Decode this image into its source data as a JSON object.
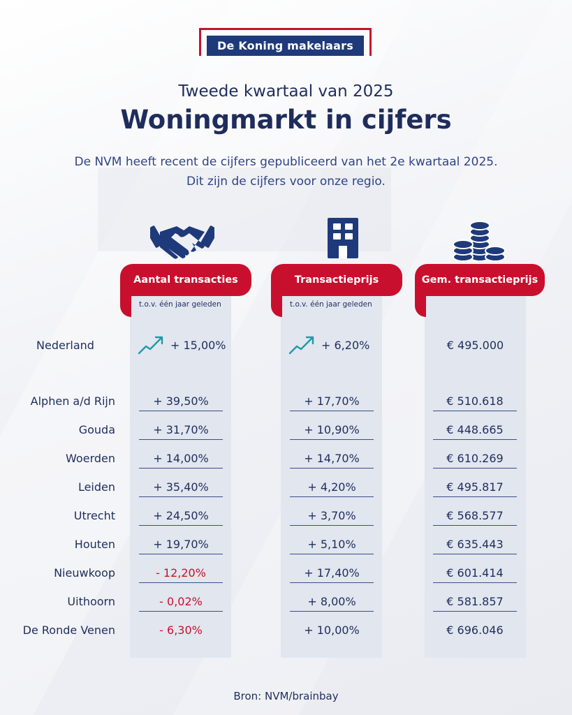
{
  "brand": {
    "name": "De Koning makelaars"
  },
  "header": {
    "subtitle": "Tweede kwartaal van 2025",
    "title": "Woningmarkt in cijfers",
    "intro_line1": "De NVM heeft recent de cijfers gepubliceerd van het 2e kwartaal 2025.",
    "intro_line2": "Dit zijn de cijfers voor onze regio."
  },
  "columns": [
    {
      "label": "Aantal transacties",
      "note": "t.o.v. één jaar geleden",
      "icon": "handshake-icon"
    },
    {
      "label": "Transactieprijs",
      "note": "t.o.v. één jaar geleden",
      "icon": "building-icon"
    },
    {
      "label": "Gem. transactieprijs",
      "icon": "coins-icon"
    }
  ],
  "national": {
    "name": "Nederland",
    "transactions": "+ 15,00%",
    "price_change": "+ 6,20%",
    "avg_price": "€ 495.000"
  },
  "rows": [
    {
      "name": "Alphen a/d Rijn",
      "transactions": "+ 39,50%",
      "price_change": "+ 17,70%",
      "avg_price": "€ 510.618"
    },
    {
      "name": "Gouda",
      "transactions": "+ 31,70%",
      "price_change": "+ 10,90%",
      "avg_price": "€ 448.665"
    },
    {
      "name": "Woerden",
      "transactions": "+ 14,00%",
      "price_change": "+ 14,70%",
      "avg_price": "€ 610.269"
    },
    {
      "name": "Leiden",
      "transactions": "+ 35,40%",
      "price_change": "+ 4,20%",
      "avg_price": "€ 495.817"
    },
    {
      "name": "Utrecht",
      "transactions": "+ 24,50%",
      "price_change": "+ 3,70%",
      "avg_price": "€ 568.577"
    },
    {
      "name": "Houten",
      "transactions": "+ 19,70%",
      "price_change": "+ 5,10%",
      "avg_price": "€ 635.443"
    },
    {
      "name": "Nieuwkoop",
      "transactions": "- 12,20%",
      "price_change": "+ 17,40%",
      "avg_price": "€ 601.414"
    },
    {
      "name": "Uithoorn",
      "transactions": "- 0,02%",
      "price_change": "+ 8,00%",
      "avg_price": "€ 581.857"
    },
    {
      "name": "De Ronde Venen",
      "transactions": "- 6,30%",
      "price_change": "+ 10,00%",
      "avg_price": "€ 696.046"
    }
  ],
  "colors": {
    "navy": "#1f2d5c",
    "red": "#c8102e",
    "teal": "#1f9aa5"
  },
  "source": "Bron: NVM/brainbay"
}
